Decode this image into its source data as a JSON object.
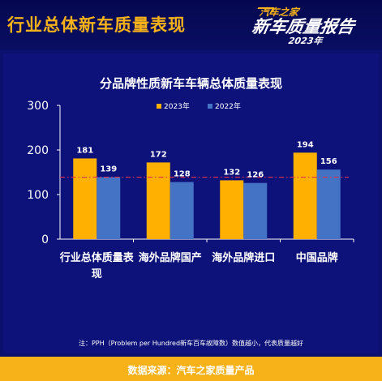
{
  "header": {
    "title": "行业总体新车质量表现",
    "brand_top": "汽车之家",
    "brand_main": "新车质量报告",
    "brand_year": "2023年"
  },
  "colors": {
    "background": "#0b0f6e",
    "accent": "#f7b21a",
    "series_2023": "#ffb000",
    "series_2022": "#4472c4",
    "reference_line": "#e0304a"
  },
  "chart_data": {
    "type": "bar",
    "title": "分品牌性质新车车辆总体质量表现",
    "categories": [
      "行业总体质量表现",
      "海外品牌国产",
      "海外品牌进口",
      "中国品牌"
    ],
    "series": [
      {
        "name": "2023年",
        "values": [
          181,
          172,
          132,
          194
        ]
      },
      {
        "name": "2022年",
        "values": [
          139,
          128,
          126,
          156
        ]
      }
    ],
    "ylim": [
      0,
      300
    ],
    "yticks": [
      "0",
      "100",
      "200",
      "300"
    ],
    "reference_line": 139,
    "legend_position": "top-right",
    "grid": false,
    "xlabel": "",
    "ylabel": ""
  },
  "footnote": "注：PPH（Problem per Hundred新车百车故障数）数值越小，代表质量越好",
  "footer": "数据来源：汽车之家质量产品"
}
